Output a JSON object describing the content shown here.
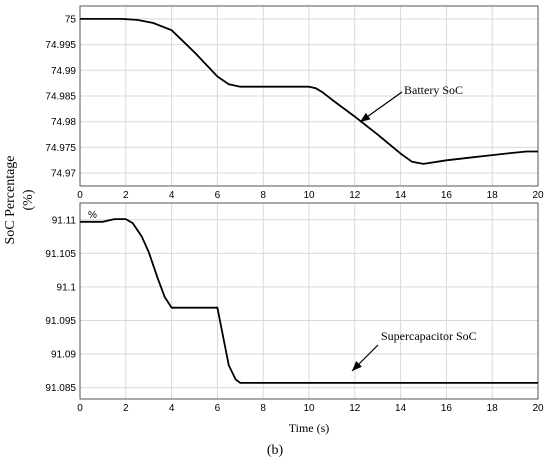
{
  "y_axis_label": "SoC Percentage",
  "y_axis_unit": "(%)",
  "caption": "(b)",
  "chart_data": [
    {
      "type": "line",
      "title": "",
      "xlabel": "",
      "ylabel_tag": "%",
      "xlim": [
        0,
        20
      ],
      "ylim": [
        74.9675,
        75.0025
      ],
      "xticks": [
        "0",
        "2",
        "4",
        "6",
        "8",
        "10",
        "12",
        "14",
        "16",
        "18",
        "20"
      ],
      "yticks": [
        "74.97",
        "74.975",
        "74.98",
        "74.985",
        "74.99",
        "74.995",
        "75"
      ],
      "ytick_values": [
        74.97,
        74.975,
        74.98,
        74.985,
        74.99,
        74.995,
        75
      ],
      "grid": true,
      "series": [
        {
          "x": [
            0,
            1,
            1.8,
            2.5,
            3.2,
            4.0,
            5.0,
            6.0,
            6.5,
            7.0,
            8.0,
            9.0,
            10.0,
            10.3,
            10.6,
            11.0,
            12.0,
            13.0,
            14.0,
            14.5,
            15.0,
            16.0,
            17.0,
            18.0,
            19.0,
            19.5,
            20.0
          ],
          "y": [
            75.0,
            75.0,
            75.0,
            74.9998,
            74.9992,
            74.9978,
            74.9935,
            74.9888,
            74.9873,
            74.9868,
            74.9868,
            74.9868,
            74.9868,
            74.9865,
            74.9857,
            74.9843,
            74.981,
            74.9775,
            74.9738,
            74.9722,
            74.9718,
            74.9725,
            74.973,
            74.9735,
            74.974,
            74.9742,
            74.9742
          ]
        }
      ],
      "annotation": {
        "text": "Battery SoC",
        "x": 12,
        "y": 74.9806
      }
    },
    {
      "type": "line",
      "title": "",
      "xlabel": "Time (s)",
      "xlim": [
        0,
        20
      ],
      "ylim": [
        91.0833,
        91.1125
      ],
      "xticks": [
        "0",
        "2",
        "4",
        "6",
        "8",
        "10",
        "12",
        "14",
        "16",
        "18",
        "20"
      ],
      "yticks": [
        "91.085",
        "91.09",
        "91.095",
        "91.1",
        "91.105",
        "91.11"
      ],
      "ytick_values": [
        91.085,
        91.09,
        91.095,
        91.1,
        91.105,
        91.11
      ],
      "grid": true,
      "series": [
        {
          "x": [
            0,
            1.0,
            1.5,
            2.0,
            2.3,
            2.7,
            3.0,
            3.4,
            3.7,
            4.0,
            6.0,
            6.5,
            6.8,
            7.0,
            20.0
          ],
          "y": [
            91.1097,
            91.1097,
            91.1101,
            91.1101,
            91.1095,
            91.1075,
            91.1052,
            91.1012,
            91.0985,
            91.0969,
            91.0969,
            91.0883,
            91.0862,
            91.0857,
            91.0857
          ]
        }
      ],
      "annotation": {
        "text": "Supercapacitor SoC",
        "x": 12,
        "y": 91.0857
      }
    }
  ]
}
